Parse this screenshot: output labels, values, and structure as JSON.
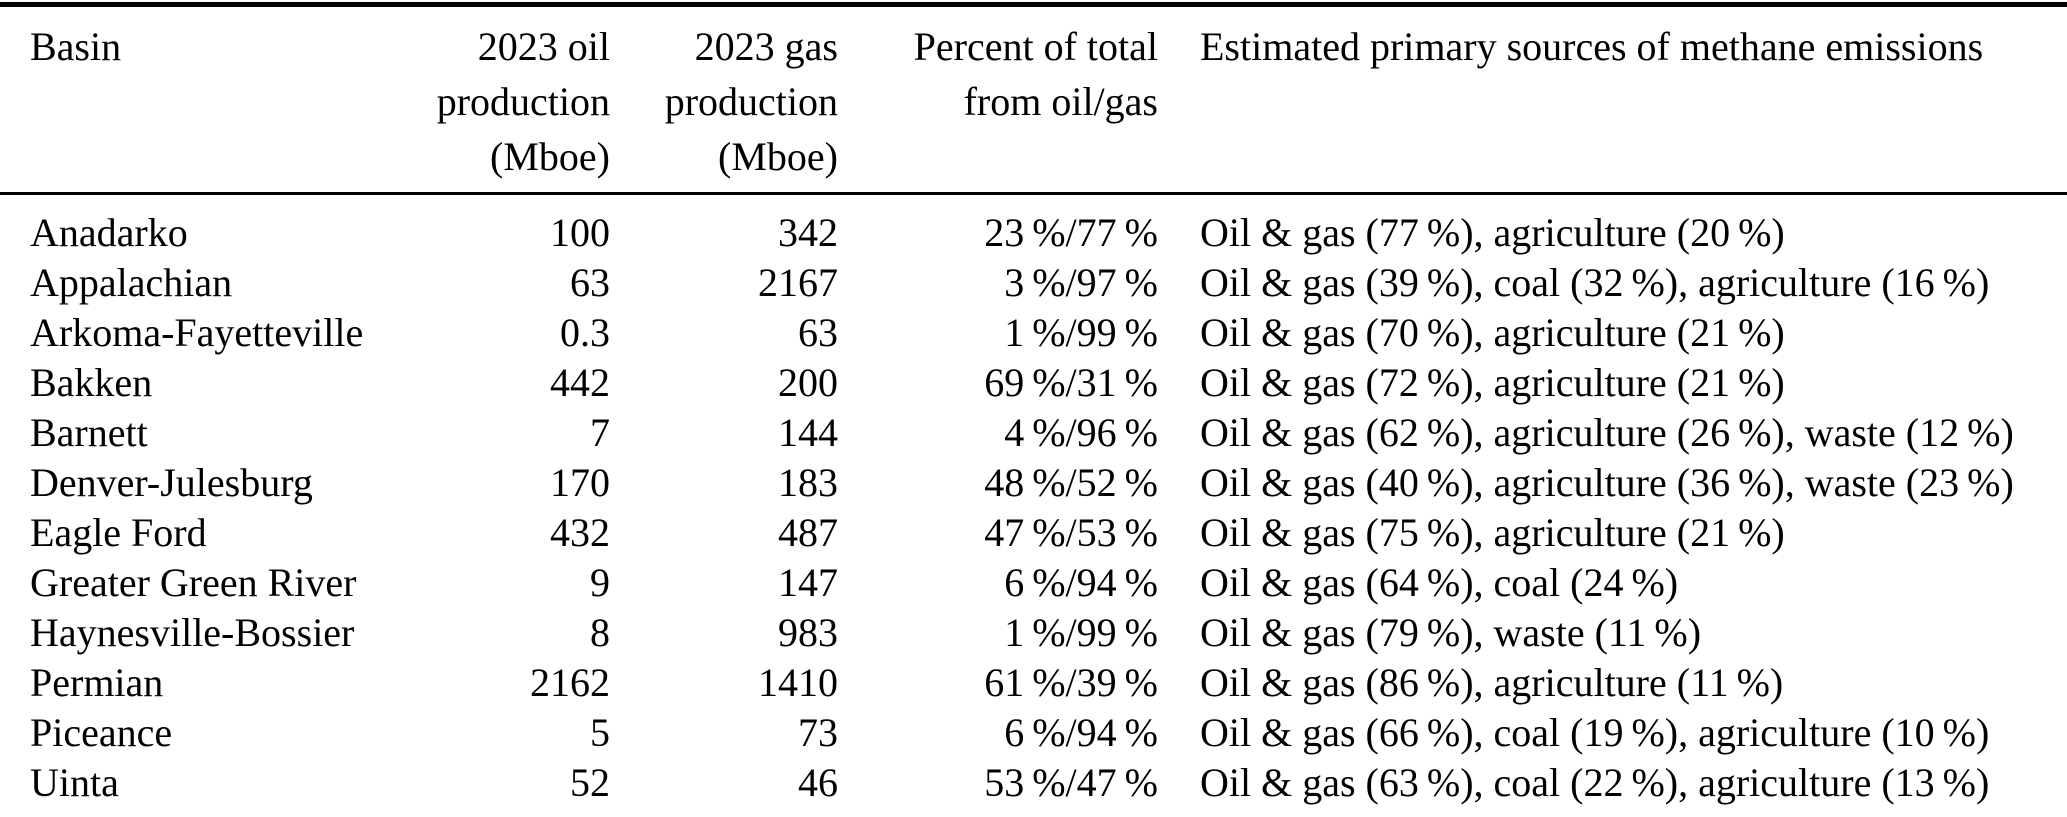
{
  "colors": {
    "text": "#000000",
    "background": "#ffffff",
    "rule": "#000000"
  },
  "table": {
    "headers": [
      "Basin",
      "2023 oil\nproduction\n(Mboe)",
      "2023 gas\nproduction\n(Mboe)",
      "Percent of total\nfrom oil/gas",
      "Estimated primary sources of methane emissions"
    ],
    "rows": [
      {
        "basin": "Anadarko",
        "oil": "100",
        "gas": "342",
        "percent": "23 %/77 %",
        "sources": "Oil & gas (77 %), agriculture (20 %)"
      },
      {
        "basin": "Appalachian",
        "oil": "63",
        "gas": "2167",
        "percent": "3 %/97 %",
        "sources": "Oil & gas (39 %), coal (32 %), agriculture (16 %)"
      },
      {
        "basin": "Arkoma-Fayetteville",
        "oil": "0.3",
        "gas": "63",
        "percent": "1 %/99 %",
        "sources": "Oil & gas (70 %), agriculture (21 %)"
      },
      {
        "basin": "Bakken",
        "oil": "442",
        "gas": "200",
        "percent": "69 %/31 %",
        "sources": "Oil & gas (72 %), agriculture (21 %)"
      },
      {
        "basin": "Barnett",
        "oil": "7",
        "gas": "144",
        "percent": "4 %/96 %",
        "sources": "Oil & gas (62 %), agriculture (26 %), waste (12 %)"
      },
      {
        "basin": "Denver-Julesburg",
        "oil": "170",
        "gas": "183",
        "percent": "48 %/52 %",
        "sources": "Oil & gas (40 %), agriculture (36 %), waste (23 %)"
      },
      {
        "basin": "Eagle Ford",
        "oil": "432",
        "gas": "487",
        "percent": "47 %/53 %",
        "sources": "Oil & gas (75 %), agriculture (21 %)"
      },
      {
        "basin": "Greater Green River",
        "oil": "9",
        "gas": "147",
        "percent": "6 %/94 %",
        "sources": "Oil & gas (64 %), coal (24 %)"
      },
      {
        "basin": "Haynesville-Bossier",
        "oil": "8",
        "gas": "983",
        "percent": "1 %/99 %",
        "sources": "Oil & gas (79 %), waste (11 %)"
      },
      {
        "basin": "Permian",
        "oil": "2162",
        "gas": "1410",
        "percent": "61 %/39 %",
        "sources": "Oil & gas (86 %), agriculture (11 %)"
      },
      {
        "basin": "Piceance",
        "oil": "5",
        "gas": "73",
        "percent": "6 %/94 %",
        "sources": "Oil & gas (66 %), coal (19 %), agriculture (10 %)"
      },
      {
        "basin": "Uinta",
        "oil": "52",
        "gas": "46",
        "percent": "53 %/47 %",
        "sources": "Oil & gas (63 %), coal (22 %), agriculture (13 %)"
      }
    ]
  }
}
